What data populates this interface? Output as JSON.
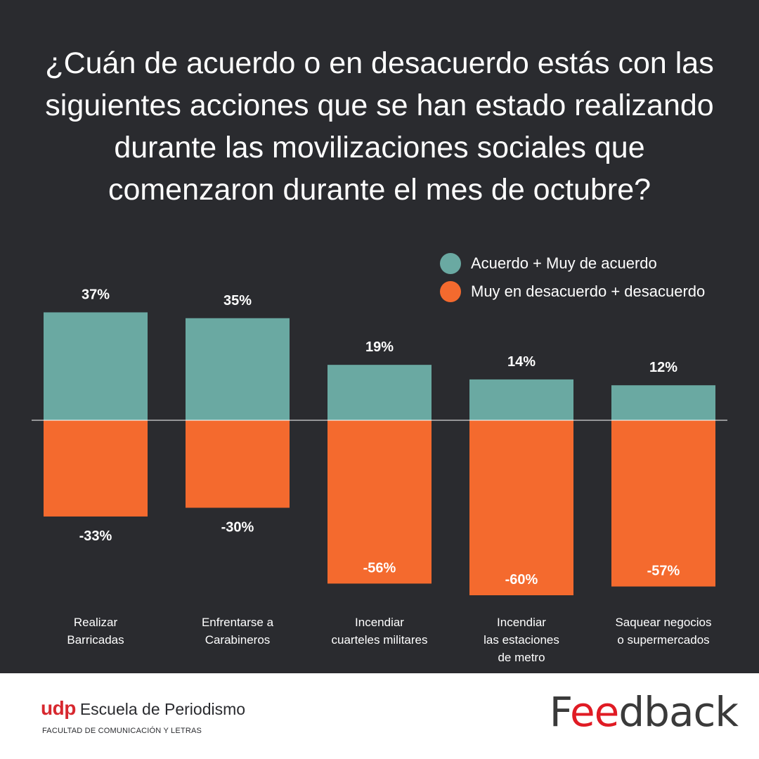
{
  "title": "¿Cuán de acuerdo o en desacuerdo estás con las siguientes acciones que se han estado realizando durante las movilizaciones sociales que comenzaron durante el mes de octubre?",
  "legend": [
    {
      "label": "Acuerdo + Muy de acuerdo",
      "color": "#6aa9a2"
    },
    {
      "label": "Muy en desacuerdo + desacuerdo",
      "color": "#f46a2e"
    }
  ],
  "chart_data": {
    "type": "bar",
    "title": "¿Cuán de acuerdo o en desacuerdo estás con las siguientes acciones que se han estado realizando durante las movilizaciones sociales que comenzaron durante el mes de octubre?",
    "categories": [
      [
        "Realizar",
        "Barricadas"
      ],
      [
        "Enfrentarse a",
        "Carabineros"
      ],
      [
        "Incendiar",
        "cuarteles militares"
      ],
      [
        "Incendiar",
        "las estaciones",
        "de metro"
      ],
      [
        "Saquear negocios",
        "o supermercados"
      ]
    ],
    "series": [
      {
        "name": "Acuerdo + Muy de acuerdo",
        "values": [
          37,
          35,
          19,
          14,
          12
        ],
        "labels": [
          "37%",
          "35%",
          "19%",
          "14%",
          "12%"
        ],
        "color": "#6aa9a2"
      },
      {
        "name": "Muy en desacuerdo + desacuerdo",
        "values": [
          -33,
          -30,
          -56,
          -60,
          -57
        ],
        "labels": [
          "-33%",
          "-30%",
          "-56%",
          "-60%",
          "-57%"
        ],
        "color": "#f46a2e"
      }
    ],
    "xlabel": "",
    "ylabel": "",
    "ylim": [
      -60,
      37
    ],
    "grid": false,
    "legend_position": "top-right"
  },
  "footer": {
    "udp_mark": "udp",
    "udp_school": "Escuela de Periodismo",
    "udp_faculty": "FACULTAD DE COMUNICACIÓN Y LETRAS",
    "feedback_pre": "F",
    "feedback_accent": "ee",
    "feedback_post": "dback"
  }
}
